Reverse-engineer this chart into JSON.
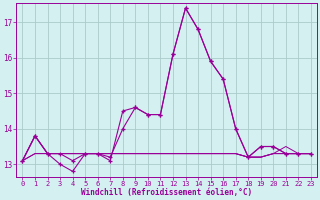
{
  "xlabel": "Windchill (Refroidissement éolien,°C)",
  "hours": [
    0,
    1,
    2,
    3,
    4,
    5,
    6,
    7,
    8,
    9,
    10,
    11,
    12,
    13,
    14,
    15,
    16,
    17,
    18,
    19,
    20,
    21,
    22,
    23
  ],
  "line1": [
    13.1,
    13.8,
    13.3,
    13.3,
    13.1,
    13.3,
    13.3,
    13.2,
    14.0,
    14.6,
    14.4,
    14.4,
    16.1,
    17.4,
    16.8,
    15.9,
    15.4,
    14.0,
    13.2,
    13.5,
    13.5,
    13.3,
    13.3,
    13.3
  ],
  "line2": [
    13.1,
    13.8,
    13.3,
    13.0,
    12.8,
    13.3,
    13.3,
    13.1,
    14.5,
    14.6,
    14.4,
    14.4,
    16.1,
    17.4,
    16.8,
    15.9,
    15.4,
    14.0,
    13.2,
    13.5,
    13.5,
    13.3,
    13.3,
    13.3
  ],
  "line3": [
    13.1,
    13.8,
    13.3,
    13.3,
    13.3,
    13.3,
    13.3,
    13.3,
    13.3,
    13.3,
    13.3,
    13.3,
    13.3,
    13.3,
    13.3,
    13.3,
    13.3,
    13.3,
    13.2,
    13.2,
    13.3,
    13.3,
    13.3,
    13.3
  ],
  "line4": [
    13.1,
    13.3,
    13.3,
    13.3,
    13.3,
    13.3,
    13.3,
    13.3,
    13.3,
    13.3,
    13.3,
    13.3,
    13.3,
    13.3,
    13.3,
    13.3,
    13.3,
    13.3,
    13.2,
    13.2,
    13.3,
    13.3,
    13.3,
    13.3
  ],
  "line5": [
    13.1,
    13.3,
    13.3,
    13.3,
    13.3,
    13.3,
    13.3,
    13.3,
    13.3,
    13.3,
    13.3,
    13.3,
    13.3,
    13.3,
    13.3,
    13.3,
    13.3,
    13.3,
    13.2,
    13.2,
    13.3,
    13.5,
    13.3,
    13.3
  ],
  "line_color": "#990099",
  "bg_color": "#d5f0f0",
  "grid_color": "#aacccc",
  "ylim": [
    12.65,
    17.55
  ],
  "yticks": [
    13,
    14,
    15,
    16,
    17
  ],
  "xlim": [
    -0.5,
    23.5
  ],
  "xtick_labels": [
    "0",
    "1",
    "2",
    "3",
    "4",
    "5",
    "6",
    "7",
    "8",
    "9",
    "10",
    "11",
    "12",
    "13",
    "14",
    "15",
    "16",
    "17",
    "18",
    "19",
    "20",
    "21",
    "22",
    "23"
  ]
}
